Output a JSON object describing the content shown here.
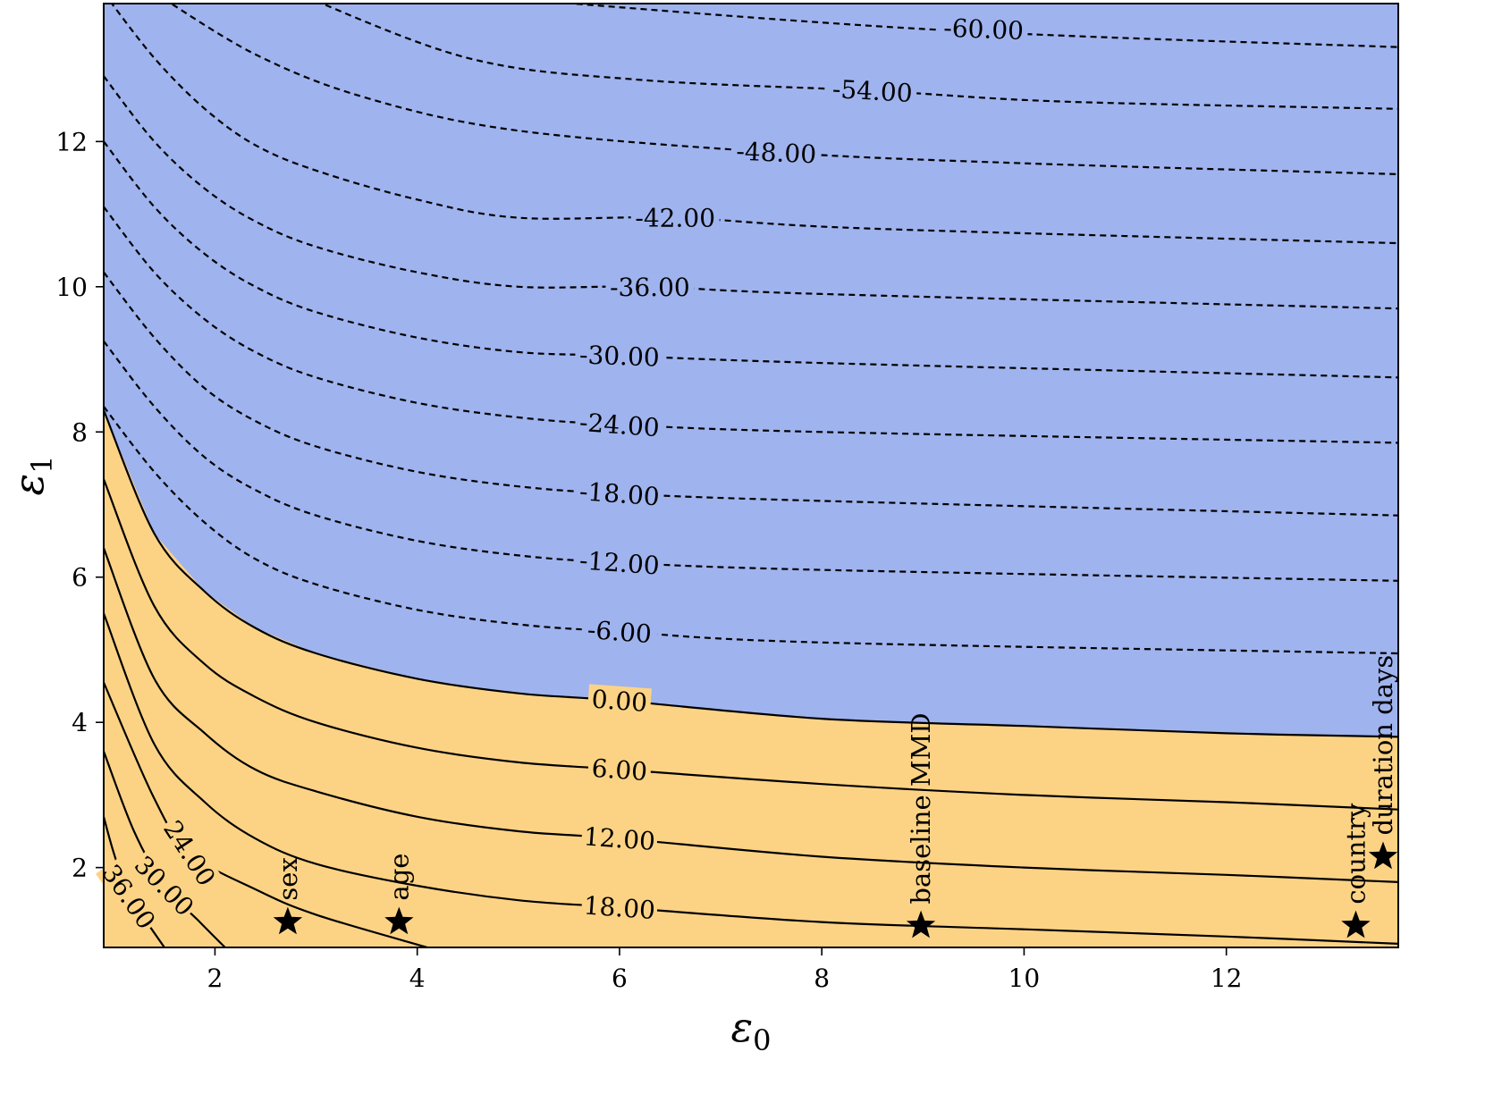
{
  "chart_data": {
    "type": "contour",
    "title": "",
    "xlabel": "ε",
    "xlabel_sub": "0",
    "ylabel": "ε",
    "ylabel_sub": "1",
    "xlim": [
      0.9,
      13.7
    ],
    "ylim": [
      0.9,
      13.9
    ],
    "x_ticks": [
      {
        "value": 2,
        "label": "2"
      },
      {
        "value": 4,
        "label": "4"
      },
      {
        "value": 6,
        "label": "6"
      },
      {
        "value": 8,
        "label": "8"
      },
      {
        "value": 10,
        "label": "10"
      },
      {
        "value": 12,
        "label": "12"
      }
    ],
    "y_ticks": [
      {
        "value": 2,
        "label": "2"
      },
      {
        "value": 4,
        "label": "4"
      },
      {
        "value": 6,
        "label": "6"
      },
      {
        "value": 8,
        "label": "8"
      },
      {
        "value": 10,
        "label": "10"
      },
      {
        "value": 12,
        "label": "12"
      }
    ],
    "fill_regions": {
      "positive_color": "#fcd385",
      "negative_color": "#9fb3ee",
      "boundary_level": 0
    },
    "contour_levels": [
      {
        "level": -60,
        "label": "-60.00",
        "label_at": [
          9.6,
          13.55
        ],
        "style": "dashed",
        "points": [
          [
            4.2,
            14.05
          ],
          [
            9.0,
            13.55
          ],
          [
            13.7,
            13.3
          ]
        ]
      },
      {
        "level": -54,
        "label": "-54.00",
        "label_at": [
          8.5,
          12.7
        ],
        "style": "dashed",
        "points": [
          [
            2.8,
            14.05
          ],
          [
            4.5,
            13.15
          ],
          [
            6.2,
            12.85
          ],
          [
            8.5,
            12.7
          ],
          [
            10.4,
            12.55
          ],
          [
            13.7,
            12.45
          ]
        ]
      },
      {
        "level": -48,
        "label": "-48.00",
        "label_at": [
          7.55,
          11.85
        ],
        "style": "dashed",
        "points": [
          [
            1.4,
            14.05
          ],
          [
            2.4,
            13.2
          ],
          [
            3.5,
            12.6
          ],
          [
            5.0,
            12.15
          ],
          [
            7.55,
            11.85
          ],
          [
            10.0,
            11.7
          ],
          [
            13.7,
            11.55
          ]
        ]
      },
      {
        "level": -42,
        "label": "-42.00",
        "label_at": [
          6.55,
          10.95
        ],
        "style": "dashed",
        "points": [
          [
            0.9,
            14.05
          ],
          [
            1.4,
            13.15
          ],
          [
            1.9,
            12.45
          ],
          [
            2.4,
            11.95
          ],
          [
            3.0,
            11.6
          ],
          [
            4.0,
            11.2
          ],
          [
            5.0,
            10.95
          ],
          [
            6.55,
            10.95
          ],
          [
            8.5,
            10.8
          ],
          [
            13.7,
            10.6
          ]
        ]
      },
      {
        "level": -36,
        "label": "-36.00",
        "label_at": [
          6.3,
          10.0
        ],
        "style": "dashed",
        "points": [
          [
            0.9,
            12.9
          ],
          [
            1.4,
            12.0
          ],
          [
            1.9,
            11.35
          ],
          [
            2.4,
            10.9
          ],
          [
            3.0,
            10.55
          ],
          [
            4.0,
            10.2
          ],
          [
            5.0,
            10.0
          ],
          [
            6.3,
            10.0
          ],
          [
            8.0,
            9.9
          ],
          [
            13.7,
            9.7
          ]
        ]
      },
      {
        "level": -30,
        "label": "-30.00",
        "label_at": [
          6.0,
          9.05
        ],
        "style": "dashed",
        "points": [
          [
            0.9,
            12.0
          ],
          [
            1.4,
            11.1
          ],
          [
            1.9,
            10.45
          ],
          [
            2.4,
            10.0
          ],
          [
            3.0,
            9.65
          ],
          [
            4.0,
            9.3
          ],
          [
            5.0,
            9.1
          ],
          [
            6.0,
            9.05
          ],
          [
            8.0,
            8.95
          ],
          [
            13.7,
            8.75
          ]
        ]
      },
      {
        "level": -24,
        "label": "-24.00",
        "label_at": [
          6.0,
          8.1
        ],
        "style": "dashed",
        "points": [
          [
            0.9,
            11.1
          ],
          [
            1.4,
            10.2
          ],
          [
            1.9,
            9.55
          ],
          [
            2.4,
            9.1
          ],
          [
            3.0,
            8.75
          ],
          [
            4.0,
            8.4
          ],
          [
            5.0,
            8.2
          ],
          [
            6.0,
            8.1
          ],
          [
            8.0,
            8.0
          ],
          [
            13.7,
            7.85
          ]
        ]
      },
      {
        "level": -18,
        "label": "-18.00",
        "label_at": [
          6.0,
          7.15
        ],
        "style": "dashed",
        "points": [
          [
            0.9,
            10.2
          ],
          [
            1.4,
            9.3
          ],
          [
            1.9,
            8.6
          ],
          [
            2.4,
            8.15
          ],
          [
            3.0,
            7.8
          ],
          [
            4.0,
            7.45
          ],
          [
            5.0,
            7.25
          ],
          [
            6.0,
            7.15
          ],
          [
            8.0,
            7.05
          ],
          [
            13.7,
            6.85
          ]
        ]
      },
      {
        "level": -12,
        "label": "-12.00",
        "label_at": [
          6.0,
          6.2
        ],
        "style": "dashed",
        "points": [
          [
            0.9,
            9.25
          ],
          [
            1.4,
            8.35
          ],
          [
            1.9,
            7.65
          ],
          [
            2.4,
            7.2
          ],
          [
            3.0,
            6.85
          ],
          [
            4.0,
            6.5
          ],
          [
            5.0,
            6.3
          ],
          [
            6.0,
            6.2
          ],
          [
            8.0,
            6.1
          ],
          [
            13.7,
            5.95
          ]
        ]
      },
      {
        "level": -6,
        "label": "-6.00",
        "label_at": [
          6.0,
          5.25
        ],
        "style": "dashed",
        "points": [
          [
            0.9,
            8.35
          ],
          [
            1.4,
            7.45
          ],
          [
            1.9,
            6.75
          ],
          [
            2.4,
            6.25
          ],
          [
            3.0,
            5.9
          ],
          [
            4.0,
            5.55
          ],
          [
            5.0,
            5.35
          ],
          [
            6.0,
            5.25
          ],
          [
            8.0,
            5.1
          ],
          [
            13.7,
            4.95
          ]
        ]
      },
      {
        "level": 0,
        "label": "0.00",
        "label_at": [
          6.0,
          4.3
        ],
        "style": "solid",
        "points": [
          [
            0.9,
            8.3
          ],
          [
            1.4,
            6.6
          ],
          [
            1.9,
            5.8
          ],
          [
            2.4,
            5.3
          ],
          [
            3.0,
            4.95
          ],
          [
            4.0,
            4.6
          ],
          [
            5.0,
            4.4
          ],
          [
            6.0,
            4.3
          ],
          [
            8.0,
            4.05
          ],
          [
            10.0,
            3.95
          ],
          [
            12.0,
            3.85
          ],
          [
            13.7,
            3.8
          ]
        ]
      },
      {
        "level": 6,
        "label": "6.00",
        "label_at": [
          6.0,
          3.35
        ],
        "style": "solid",
        "points": [
          [
            0.9,
            7.35
          ],
          [
            1.4,
            5.6
          ],
          [
            1.9,
            4.8
          ],
          [
            2.4,
            4.35
          ],
          [
            3.0,
            4.0
          ],
          [
            4.0,
            3.65
          ],
          [
            5.0,
            3.45
          ],
          [
            6.0,
            3.35
          ],
          [
            8.0,
            3.15
          ],
          [
            10.0,
            3.0
          ],
          [
            12.0,
            2.9
          ],
          [
            13.7,
            2.8
          ]
        ]
      },
      {
        "level": 12,
        "label": "12.00",
        "label_at": [
          6.0,
          2.4
        ],
        "style": "solid",
        "points": [
          [
            0.9,
            6.4
          ],
          [
            1.4,
            4.6
          ],
          [
            1.9,
            3.85
          ],
          [
            2.4,
            3.35
          ],
          [
            3.0,
            3.05
          ],
          [
            4.0,
            2.7
          ],
          [
            5.0,
            2.5
          ],
          [
            6.0,
            2.4
          ],
          [
            8.0,
            2.15
          ],
          [
            10.0,
            2.0
          ],
          [
            12.0,
            1.9
          ],
          [
            13.7,
            1.8
          ]
        ]
      },
      {
        "level": 18,
        "label": "18.00",
        "label_at": [
          6.0,
          1.45
        ],
        "style": "solid",
        "points": [
          [
            0.9,
            5.5
          ],
          [
            1.4,
            3.7
          ],
          [
            1.9,
            2.9
          ],
          [
            2.4,
            2.4
          ],
          [
            3.0,
            2.05
          ],
          [
            4.0,
            1.75
          ],
          [
            5.0,
            1.55
          ],
          [
            6.0,
            1.45
          ],
          [
            8.0,
            1.25
          ],
          [
            10.0,
            1.15
          ],
          [
            12.0,
            1.05
          ],
          [
            13.7,
            0.95
          ]
        ]
      },
      {
        "level": 24,
        "label": "24.00",
        "label_at": [
          1.75,
          2.2
        ],
        "style": "solid",
        "points": [
          [
            0.9,
            4.55
          ],
          [
            1.4,
            2.95
          ],
          [
            1.75,
            2.2
          ],
          [
            2.4,
            1.7
          ],
          [
            3.0,
            1.35
          ],
          [
            4.1,
            0.9
          ]
        ]
      },
      {
        "level": 30,
        "label": "30.00",
        "label_at": [
          1.5,
          1.75
        ],
        "style": "solid",
        "points": [
          [
            0.9,
            3.6
          ],
          [
            1.2,
            2.5
          ],
          [
            1.5,
            1.75
          ],
          [
            1.85,
            1.25
          ],
          [
            2.1,
            0.9
          ]
        ]
      },
      {
        "level": 36,
        "label": "36.00",
        "label_at": [
          1.15,
          1.6
        ],
        "style": "solid",
        "points": [
          [
            0.9,
            2.7
          ],
          [
            1.0,
            2.2
          ],
          [
            1.15,
            1.6
          ],
          [
            1.35,
            1.2
          ],
          [
            1.5,
            0.9
          ]
        ]
      }
    ],
    "markers": [
      {
        "label": "sex",
        "x": 2.72,
        "y": 1.25
      },
      {
        "label": "age",
        "x": 3.82,
        "y": 1.25
      },
      {
        "label": "baseline MMD",
        "x": 8.98,
        "y": 1.2
      },
      {
        "label": "country",
        "x": 13.28,
        "y": 1.2
      },
      {
        "label": "duration days",
        "x": 13.55,
        "y": 2.15
      }
    ]
  }
}
